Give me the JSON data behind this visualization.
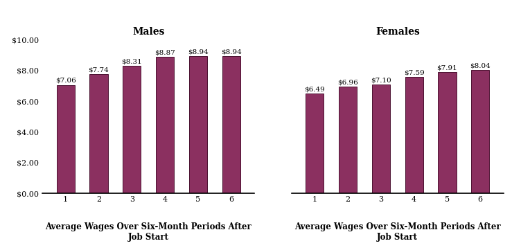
{
  "males_values": [
    7.06,
    7.74,
    8.31,
    8.87,
    8.94,
    8.94
  ],
  "females_values": [
    6.49,
    6.96,
    7.1,
    7.59,
    7.91,
    8.04
  ],
  "males_labels": [
    "$7.06",
    "$7.74",
    "$8.31",
    "$8.87",
    "$8.94",
    "$8.94"
  ],
  "females_labels": [
    "$6.49",
    "$6.96",
    "$7.10",
    "$7.59",
    "$7.91",
    "$8.04"
  ],
  "categories": [
    1,
    2,
    3,
    4,
    5,
    6
  ],
  "bar_color": "#8B3060",
  "bar_edgecolor": "#4a1030",
  "ylim": [
    0,
    10
  ],
  "yticks": [
    0,
    2,
    4,
    6,
    8,
    10
  ],
  "ytick_labels": [
    "$0.00",
    "$2.00",
    "$4.00",
    "$6.00",
    "$8.00",
    "$10.00"
  ],
  "males_title": "Males",
  "females_title": "Females",
  "xlabel": "Average Wages Over Six-Month Periods After\nJob Start",
  "title_fontsize": 10,
  "tick_label_fontsize": 8,
  "bar_label_fontsize": 7.5,
  "xlabel_fontsize": 8.5,
  "background_color": "#ffffff"
}
